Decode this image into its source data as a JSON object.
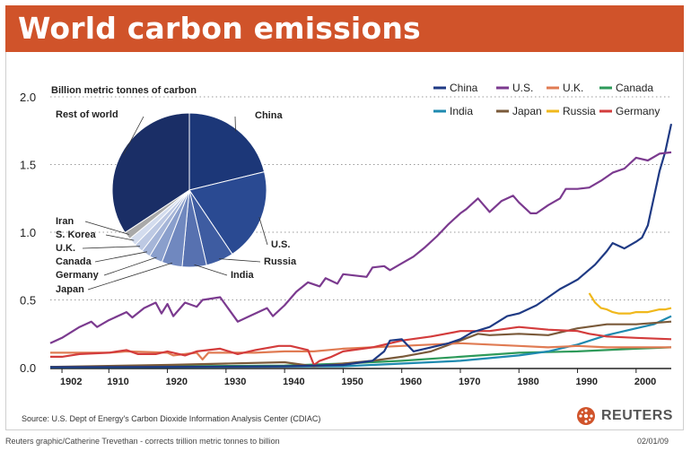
{
  "header": {
    "title": "World carbon emissions"
  },
  "footer": {
    "source": "Source: U.S. Dept of Energy's Carbon Dioxide Information Analysis Center (CDIAC)",
    "credit": "Reuters graphic/Catherine Trevethan - corrects trillion metric tonnes to billion",
    "date": "02/01/09",
    "brand": "REUTERS"
  },
  "colors": {
    "header_bg": "#d0532a",
    "brand_logo": "#d0532a"
  },
  "chart_data": [
    {
      "type": "line",
      "ylabel": "Billion metric tonnes of carbon",
      "ylim": [
        0,
        2.0
      ],
      "xlim": [
        1900,
        2006
      ],
      "y_ticks": [
        "0.0",
        "0.5",
        "1.0",
        "1.5",
        "2.0"
      ],
      "x_ticks": [
        "1902",
        "1910",
        "1920",
        "1930",
        "1940",
        "1950",
        "1960",
        "1970",
        "1980",
        "1990",
        "2000"
      ],
      "grid": "horizontal dotted",
      "legend_position": "top-right",
      "series": [
        {
          "name": "China",
          "color": "#1f3a84",
          "points": [
            [
              1900,
              0.003
            ],
            [
              1920,
              0.005
            ],
            [
              1940,
              0.01
            ],
            [
              1950,
              0.02
            ],
            [
              1955,
              0.05
            ],
            [
              1957,
              0.12
            ],
            [
              1958,
              0.2
            ],
            [
              1960,
              0.21
            ],
            [
              1962,
              0.12
            ],
            [
              1965,
              0.15
            ],
            [
              1968,
              0.18
            ],
            [
              1970,
              0.21
            ],
            [
              1972,
              0.26
            ],
            [
              1975,
              0.3
            ],
            [
              1978,
              0.38
            ],
            [
              1980,
              0.4
            ],
            [
              1983,
              0.46
            ],
            [
              1985,
              0.52
            ],
            [
              1987,
              0.58
            ],
            [
              1990,
              0.65
            ],
            [
              1993,
              0.76
            ],
            [
              1995,
              0.86
            ],
            [
              1996,
              0.92
            ],
            [
              1998,
              0.88
            ],
            [
              2000,
              0.93
            ],
            [
              2001,
              0.96
            ],
            [
              2002,
              1.05
            ],
            [
              2003,
              1.25
            ],
            [
              2004,
              1.45
            ],
            [
              2005,
              1.6
            ],
            [
              2006,
              1.8
            ]
          ]
        },
        {
          "name": "U.S.",
          "color": "#7b3a8f",
          "points": [
            [
              1900,
              0.18
            ],
            [
              1902,
              0.22
            ],
            [
              1905,
              0.3
            ],
            [
              1907,
              0.34
            ],
            [
              1908,
              0.3
            ],
            [
              1910,
              0.35
            ],
            [
              1913,
              0.41
            ],
            [
              1914,
              0.37
            ],
            [
              1916,
              0.44
            ],
            [
              1918,
              0.48
            ],
            [
              1919,
              0.4
            ],
            [
              1920,
              0.47
            ],
            [
              1921,
              0.38
            ],
            [
              1923,
              0.48
            ],
            [
              1925,
              0.45
            ],
            [
              1926,
              0.5
            ],
            [
              1929,
              0.52
            ],
            [
              1930,
              0.46
            ],
            [
              1932,
              0.34
            ],
            [
              1934,
              0.38
            ],
            [
              1937,
              0.44
            ],
            [
              1938,
              0.38
            ],
            [
              1940,
              0.46
            ],
            [
              1942,
              0.56
            ],
            [
              1944,
              0.63
            ],
            [
              1946,
              0.6
            ],
            [
              1947,
              0.66
            ],
            [
              1949,
              0.62
            ],
            [
              1950,
              0.69
            ],
            [
              1952,
              0.68
            ],
            [
              1954,
              0.67
            ],
            [
              1955,
              0.74
            ],
            [
              1957,
              0.75
            ],
            [
              1958,
              0.72
            ],
            [
              1960,
              0.77
            ],
            [
              1962,
              0.82
            ],
            [
              1964,
              0.89
            ],
            [
              1966,
              0.97
            ],
            [
              1968,
              1.06
            ],
            [
              1970,
              1.14
            ],
            [
              1971,
              1.17
            ],
            [
              1973,
              1.25
            ],
            [
              1974,
              1.2
            ],
            [
              1975,
              1.15
            ],
            [
              1977,
              1.23
            ],
            [
              1979,
              1.27
            ],
            [
              1980,
              1.22
            ],
            [
              1982,
              1.14
            ],
            [
              1983,
              1.14
            ],
            [
              1985,
              1.2
            ],
            [
              1987,
              1.25
            ],
            [
              1988,
              1.32
            ],
            [
              1990,
              1.32
            ],
            [
              1992,
              1.33
            ],
            [
              1994,
              1.38
            ],
            [
              1996,
              1.44
            ],
            [
              1998,
              1.47
            ],
            [
              2000,
              1.55
            ],
            [
              2002,
              1.53
            ],
            [
              2004,
              1.58
            ],
            [
              2006,
              1.59
            ]
          ]
        },
        {
          "name": "U.K.",
          "color": "#e07b53",
          "points": [
            [
              1900,
              0.11
            ],
            [
              1905,
              0.11
            ],
            [
              1910,
              0.11
            ],
            [
              1913,
              0.12
            ],
            [
              1920,
              0.11
            ],
            [
              1921,
              0.09
            ],
            [
              1925,
              0.11
            ],
            [
              1926,
              0.06
            ],
            [
              1927,
              0.11
            ],
            [
              1930,
              0.11
            ],
            [
              1935,
              0.11
            ],
            [
              1940,
              0.12
            ],
            [
              1945,
              0.12
            ],
            [
              1950,
              0.14
            ],
            [
              1955,
              0.15
            ],
            [
              1960,
              0.16
            ],
            [
              1965,
              0.17
            ],
            [
              1970,
              0.18
            ],
            [
              1975,
              0.17
            ],
            [
              1980,
              0.16
            ],
            [
              1985,
              0.15
            ],
            [
              1990,
              0.16
            ],
            [
              1995,
              0.15
            ],
            [
              2000,
              0.15
            ],
            [
              2006,
              0.15
            ]
          ]
        },
        {
          "name": "Canada",
          "color": "#2e9a5a",
          "points": [
            [
              1900,
              0.005
            ],
            [
              1920,
              0.01
            ],
            [
              1940,
              0.015
            ],
            [
              1950,
              0.03
            ],
            [
              1960,
              0.05
            ],
            [
              1970,
              0.08
            ],
            [
              1980,
              0.11
            ],
            [
              1990,
              0.12
            ],
            [
              2000,
              0.14
            ],
            [
              2006,
              0.15
            ]
          ]
        },
        {
          "name": "India",
          "color": "#1e8ab0",
          "points": [
            [
              1900,
              0.002
            ],
            [
              1930,
              0.005
            ],
            [
              1950,
              0.01
            ],
            [
              1960,
              0.03
            ],
            [
              1970,
              0.05
            ],
            [
              1980,
              0.09
            ],
            [
              1985,
              0.12
            ],
            [
              1990,
              0.17
            ],
            [
              1995,
              0.24
            ],
            [
              2000,
              0.29
            ],
            [
              2003,
              0.32
            ],
            [
              2006,
              0.38
            ]
          ]
        },
        {
          "name": "Japan",
          "color": "#7a5a3a",
          "points": [
            [
              1900,
              0.005
            ],
            [
              1920,
              0.02
            ],
            [
              1930,
              0.03
            ],
            [
              1940,
              0.04
            ],
            [
              1945,
              0.01
            ],
            [
              1950,
              0.03
            ],
            [
              1955,
              0.05
            ],
            [
              1960,
              0.08
            ],
            [
              1965,
              0.12
            ],
            [
              1970,
              0.2
            ],
            [
              1973,
              0.25
            ],
            [
              1975,
              0.24
            ],
            [
              1980,
              0.25
            ],
            [
              1985,
              0.24
            ],
            [
              1990,
              0.29
            ],
            [
              1995,
              0.32
            ],
            [
              2000,
              0.32
            ],
            [
              2006,
              0.34
            ]
          ]
        },
        {
          "name": "Russia",
          "color": "#f0b81c",
          "points": [
            [
              1992,
              0.55
            ],
            [
              1993,
              0.48
            ],
            [
              1994,
              0.44
            ],
            [
              1995,
              0.43
            ],
            [
              1996,
              0.41
            ],
            [
              1997,
              0.4
            ],
            [
              1998,
              0.4
            ],
            [
              1999,
              0.4
            ],
            [
              2000,
              0.41
            ],
            [
              2001,
              0.41
            ],
            [
              2002,
              0.41
            ],
            [
              2003,
              0.42
            ],
            [
              2004,
              0.43
            ],
            [
              2005,
              0.43
            ],
            [
              2006,
              0.44
            ]
          ]
        },
        {
          "name": "Germany",
          "color": "#d33c3c",
          "points": [
            [
              1900,
              0.08
            ],
            [
              1902,
              0.08
            ],
            [
              1905,
              0.1
            ],
            [
              1910,
              0.11
            ],
            [
              1913,
              0.13
            ],
            [
              1915,
              0.1
            ],
            [
              1918,
              0.1
            ],
            [
              1920,
              0.12
            ],
            [
              1923,
              0.09
            ],
            [
              1925,
              0.12
            ],
            [
              1929,
              0.14
            ],
            [
              1932,
              0.1
            ],
            [
              1935,
              0.13
            ],
            [
              1939,
              0.16
            ],
            [
              1941,
              0.16
            ],
            [
              1944,
              0.13
            ],
            [
              1945,
              0.02
            ],
            [
              1946,
              0.05
            ],
            [
              1948,
              0.08
            ],
            [
              1950,
              0.12
            ],
            [
              1955,
              0.15
            ],
            [
              1960,
              0.2
            ],
            [
              1965,
              0.23
            ],
            [
              1970,
              0.27
            ],
            [
              1975,
              0.27
            ],
            [
              1980,
              0.3
            ],
            [
              1985,
              0.28
            ],
            [
              1990,
              0.27
            ],
            [
              1992,
              0.25
            ],
            [
              1995,
              0.23
            ],
            [
              2000,
              0.22
            ],
            [
              2006,
              0.21
            ]
          ]
        }
      ]
    },
    {
      "type": "pie",
      "inset": true,
      "slices": [
        {
          "label": "China",
          "value": 21.2,
          "color": "#1c3778"
        },
        {
          "label": "U.S.",
          "value": 19.4,
          "color": "#2a4a92"
        },
        {
          "label": "Russia",
          "value": 5.8,
          "color": "#3e5ca1"
        },
        {
          "label": "India",
          "value": 5.1,
          "color": "#5771b0"
        },
        {
          "label": "Japan",
          "value": 4.3,
          "color": "#7088bf"
        },
        {
          "label": "Germany",
          "value": 2.8,
          "color": "#8a9fcc"
        },
        {
          "label": "Canada",
          "value": 1.9,
          "color": "#a5b5d8"
        },
        {
          "label": "U.K.",
          "value": 1.9,
          "color": "#bdc9e3"
        },
        {
          "label": "S. Korea",
          "value": 1.7,
          "color": "#d3dcee"
        },
        {
          "label": "Iran",
          "value": 1.6,
          "color": "#a9a9a9"
        },
        {
          "label": "Rest of world",
          "value": 34.3,
          "color": "#1a2e66"
        }
      ]
    }
  ]
}
